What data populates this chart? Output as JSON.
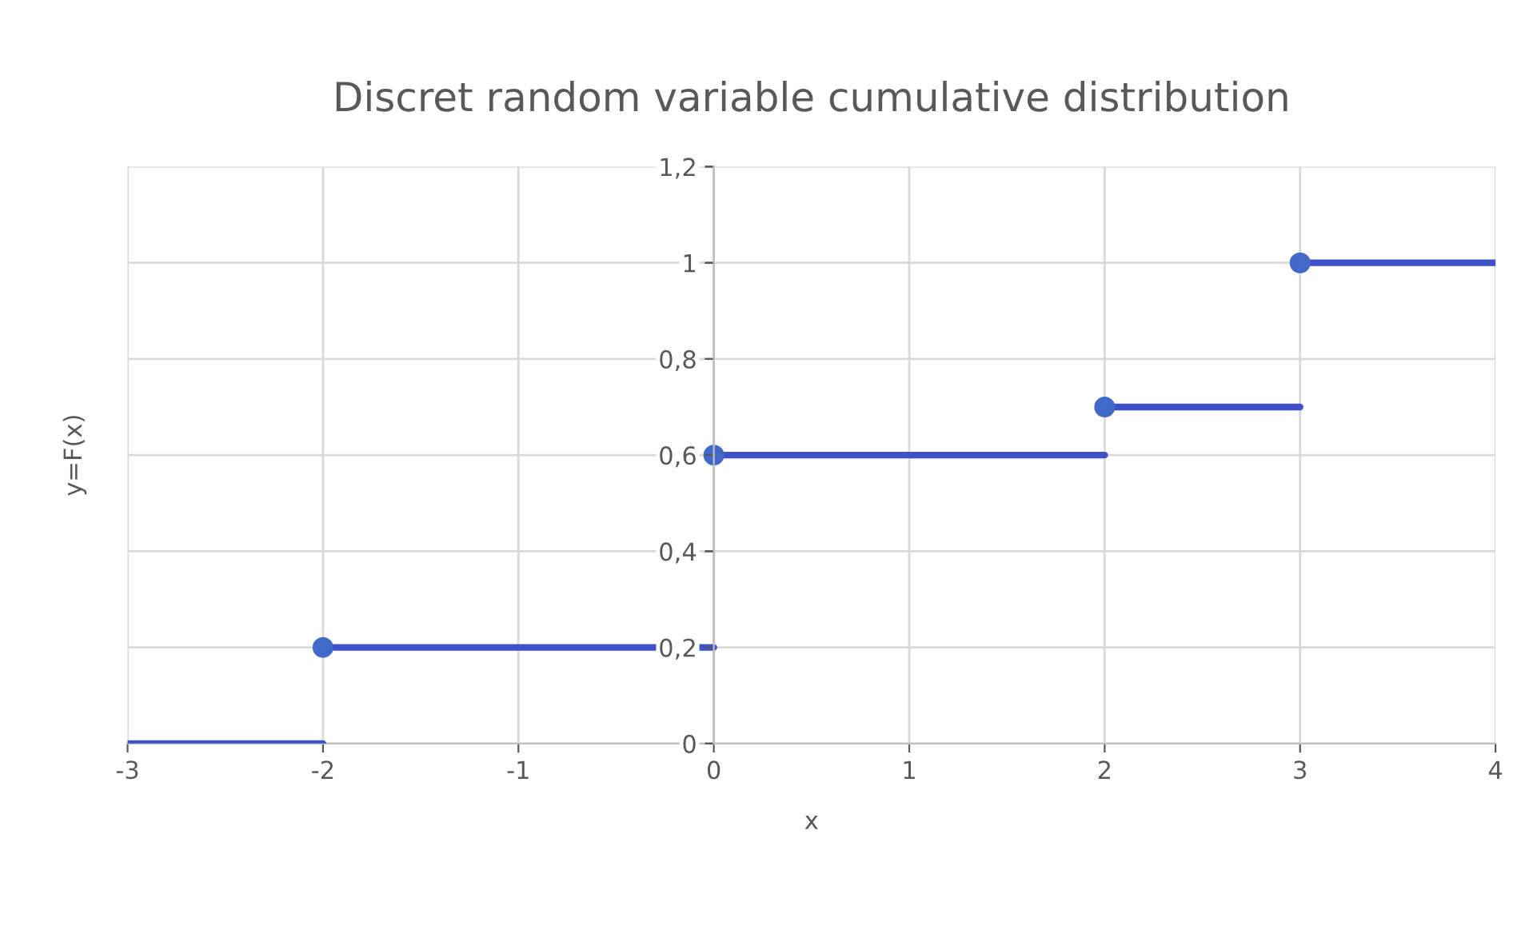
{
  "chart_data": {
    "type": "line",
    "title": "Discret random variable cumulative distribution",
    "xlabel": "x",
    "ylabel": "y=F(x)",
    "series": [
      {
        "color": "#3f51c8",
        "x": [
          -3,
          -2
        ],
        "values": [
          0,
          0
        ]
      },
      {
        "color": "#3f51c8",
        "x": [
          -2,
          0
        ],
        "values": [
          0.2,
          0.2
        ]
      },
      {
        "color": "#3f51c8",
        "x": [
          0,
          2
        ],
        "values": [
          0.6,
          0.6
        ]
      },
      {
        "color": "#3f51c8",
        "x": [
          2,
          3
        ],
        "values": [
          0.7,
          0.7
        ]
      },
      {
        "color": "#3f51c8",
        "x": [
          3,
          4
        ],
        "values": [
          1,
          1
        ]
      },
      {
        "type": "scatter",
        "color": "#4169c8",
        "marker": "circle",
        "x": [
          -2,
          0,
          2,
          3
        ],
        "values": [
          0.2,
          0.6,
          0.7,
          1
        ]
      }
    ],
    "xlim": [
      -3,
      4
    ],
    "xticks": [
      -3,
      -2,
      -1,
      0,
      1,
      2,
      3,
      4
    ],
    "ylim": [
      0,
      1.2
    ],
    "yticks": [
      0,
      {
        "value": 0.2,
        "label": "0,2"
      },
      {
        "value": 0.4,
        "label": "0,4"
      },
      {
        "value": 0.6,
        "label": "0,6"
      },
      {
        "value": 0.8,
        "label": "0,8"
      },
      1,
      {
        "value": 1.2,
        "label": "1,2"
      }
    ],
    "grid": true,
    "marker": "none",
    "line_style": "solid"
  }
}
